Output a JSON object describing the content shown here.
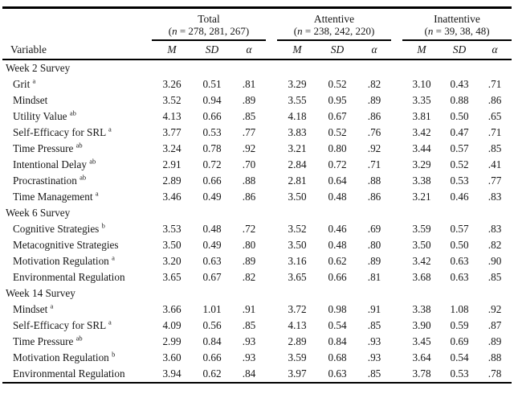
{
  "page": {
    "background": "#ffffff",
    "text_color": "#161616",
    "rule_color": "#000000"
  },
  "table": {
    "variable_header": "Variable",
    "stat_headers": [
      "M",
      "SD",
      "α"
    ],
    "groups": [
      {
        "label": "Total",
        "n_label": "(n = 278, 281, 267)"
      },
      {
        "label": "Attentive",
        "n_label": "(n = 238, 242, 220)"
      },
      {
        "label": "Inattentive",
        "n_label": "(n = 39, 38, 48)"
      }
    ],
    "sections": [
      {
        "title": "Week 2 Survey",
        "rows": [
          {
            "label": "Grit",
            "sup": "a",
            "values": [
              "3.26",
              "0.51",
              ".81",
              "3.29",
              "0.52",
              ".82",
              "3.10",
              "0.43",
              ".71"
            ]
          },
          {
            "label": "Mindset",
            "sup": "",
            "values": [
              "3.52",
              "0.94",
              ".89",
              "3.55",
              "0.95",
              ".89",
              "3.35",
              "0.88",
              ".86"
            ]
          },
          {
            "label": "Utility Value",
            "sup": "ab",
            "values": [
              "4.13",
              "0.66",
              ".85",
              "4.18",
              "0.67",
              ".86",
              "3.81",
              "0.50",
              ".65"
            ]
          },
          {
            "label": "Self-Efficacy for SRL",
            "sup": "a",
            "values": [
              "3.77",
              "0.53",
              ".77",
              "3.83",
              "0.52",
              ".76",
              "3.42",
              "0.47",
              ".71"
            ]
          },
          {
            "label": "Time Pressure",
            "sup": "ab",
            "values": [
              "3.24",
              "0.78",
              ".92",
              "3.21",
              "0.80",
              ".92",
              "3.44",
              "0.57",
              ".85"
            ]
          },
          {
            "label": "Intentional Delay",
            "sup": "ab",
            "values": [
              "2.91",
              "0.72",
              ".70",
              "2.84",
              "0.72",
              ".71",
              "3.29",
              "0.52",
              ".41"
            ]
          },
          {
            "label": "Procrastination",
            "sup": "ab",
            "values": [
              "2.89",
              "0.66",
              ".88",
              "2.81",
              "0.64",
              ".88",
              "3.38",
              "0.53",
              ".77"
            ]
          },
          {
            "label": "Time Management",
            "sup": "a",
            "values": [
              "3.46",
              "0.49",
              ".86",
              "3.50",
              "0.48",
              ".86",
              "3.21",
              "0.46",
              ".83"
            ]
          }
        ]
      },
      {
        "title": "Week 6 Survey",
        "rows": [
          {
            "label": "Cognitive Strategies",
            "sup": "b",
            "values": [
              "3.53",
              "0.48",
              ".72",
              "3.52",
              "0.46",
              ".69",
              "3.59",
              "0.57",
              ".83"
            ]
          },
          {
            "label": "Metacognitive Strategies",
            "sup": "",
            "values": [
              "3.50",
              "0.49",
              ".80",
              "3.50",
              "0.48",
              ".80",
              "3.50",
              "0.50",
              ".82"
            ]
          },
          {
            "label": "Motivation Regulation",
            "sup": "a",
            "values": [
              "3.20",
              "0.63",
              ".89",
              "3.16",
              "0.62",
              ".89",
              "3.42",
              "0.63",
              ".90"
            ]
          },
          {
            "label": "Environmental Regulation",
            "sup": "",
            "values": [
              "3.65",
              "0.67",
              ".82",
              "3.65",
              "0.66",
              ".81",
              "3.68",
              "0.63",
              ".85"
            ]
          }
        ]
      },
      {
        "title": "Week 14 Survey",
        "rows": [
          {
            "label": "Mindset",
            "sup": "a",
            "values": [
              "3.66",
              "1.01",
              ".91",
              "3.72",
              "0.98",
              ".91",
              "3.38",
              "1.08",
              ".92"
            ]
          },
          {
            "label": "Self-Efficacy for SRL",
            "sup": "a",
            "values": [
              "4.09",
              "0.56",
              ".85",
              "4.13",
              "0.54",
              ".85",
              "3.90",
              "0.59",
              ".87"
            ]
          },
          {
            "label": "Time Pressure",
            "sup": "ab",
            "values": [
              "2.99",
              "0.84",
              ".93",
              "2.89",
              "0.84",
              ".93",
              "3.45",
              "0.69",
              ".89"
            ]
          },
          {
            "label": "Motivation Regulation",
            "sup": "b",
            "values": [
              "3.60",
              "0.66",
              ".93",
              "3.59",
              "0.68",
              ".93",
              "3.64",
              "0.54",
              ".88"
            ]
          },
          {
            "label": "Environmental Regulation",
            "sup": "",
            "values": [
              "3.94",
              "0.62",
              ".84",
              "3.97",
              "0.63",
              ".85",
              "3.78",
              "0.53",
              ".78"
            ]
          }
        ]
      }
    ]
  }
}
